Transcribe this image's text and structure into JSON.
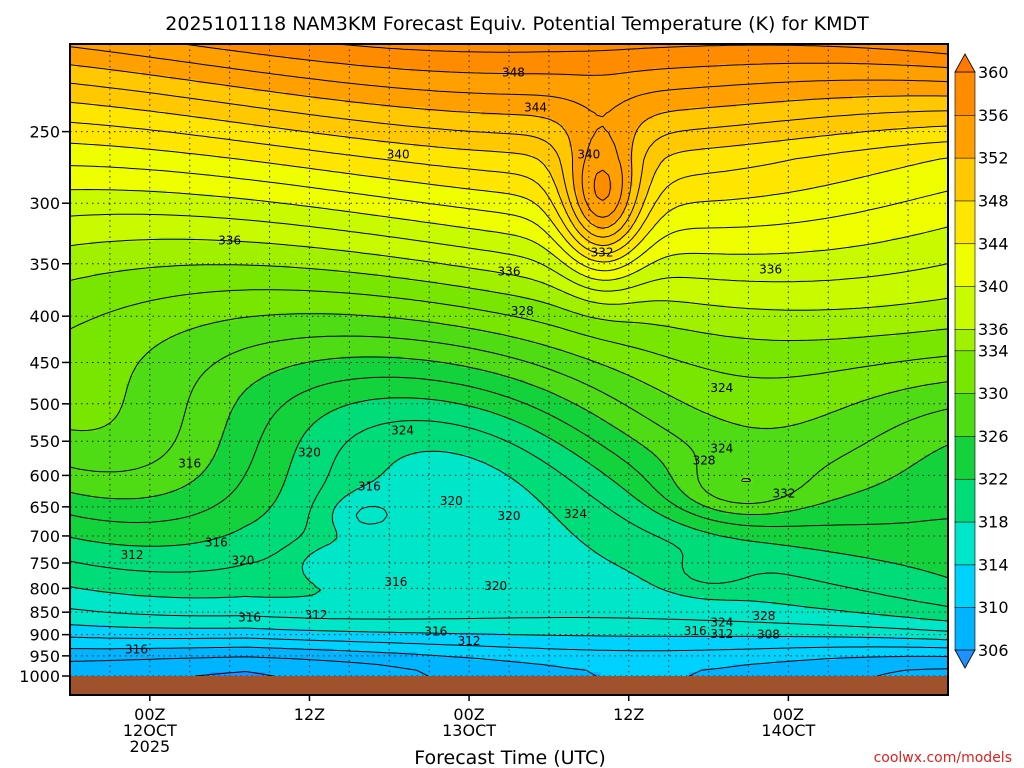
{
  "chart_data": {
    "type": "contour",
    "title": "2025101118 NAM3KM Forecast Equiv. Potential Temperature (K) for KMDT",
    "xlabel": "Forecast Time (UTC)",
    "ylabel": "",
    "credit": "coolwx.com/models",
    "y_axis": {
      "scale": "log",
      "units": "hPa",
      "ylim": [
        1000,
        200
      ],
      "tick_labels": [
        "250",
        "300",
        "350",
        "400",
        "450",
        "500",
        "550",
        "600",
        "650",
        "700",
        "750",
        "800",
        "850",
        "900",
        "950",
        "1000"
      ]
    },
    "x_axis": {
      "xlim": [
        "2025-10-11T18:00Z",
        "2025-10-14T12:00Z"
      ],
      "ticks": [
        {
          "time": "2025-10-12T00:00Z",
          "lines": [
            "00Z",
            "12OCT",
            "2025"
          ]
        },
        {
          "time": "2025-10-12T12:00Z",
          "lines": [
            "12Z"
          ]
        },
        {
          "time": "2025-10-13T00:00Z",
          "lines": [
            "00Z",
            "13OCT"
          ]
        },
        {
          "time": "2025-10-13T12:00Z",
          "lines": [
            "12Z"
          ]
        },
        {
          "time": "2025-10-14T00:00Z",
          "lines": [
            "00Z",
            "14OCT"
          ]
        }
      ],
      "grid": true
    },
    "colorbar": {
      "units": "K",
      "tick_labels": [
        "306",
        "310",
        "314",
        "318",
        "322",
        "326",
        "330",
        "334",
        "336",
        "340",
        "344",
        "348",
        "352",
        "356",
        "360"
      ],
      "bands": [
        {
          "from": 304,
          "to": 306,
          "color": "#1e90ff"
        },
        {
          "from": 306,
          "to": 310,
          "color": "#00b4ff"
        },
        {
          "from": 310,
          "to": 314,
          "color": "#00d2ff"
        },
        {
          "from": 314,
          "to": 318,
          "color": "#00e6c8"
        },
        {
          "from": 318,
          "to": 322,
          "color": "#00dc78"
        },
        {
          "from": 322,
          "to": 326,
          "color": "#14d23c"
        },
        {
          "from": 326,
          "to": 330,
          "color": "#50dc14"
        },
        {
          "from": 330,
          "to": 334,
          "color": "#78e600"
        },
        {
          "from": 334,
          "to": 336,
          "color": "#a0f000"
        },
        {
          "from": 336,
          "to": 340,
          "color": "#c8fa00"
        },
        {
          "from": 340,
          "to": 344,
          "color": "#f0ff00"
        },
        {
          "from": 344,
          "to": 348,
          "color": "#ffe600"
        },
        {
          "from": 348,
          "to": 352,
          "color": "#ffc800"
        },
        {
          "from": 352,
          "to": 356,
          "color": "#ffa000"
        },
        {
          "from": 356,
          "to": 360,
          "color": "#ff8c00"
        },
        {
          "from": 360,
          "to": 362,
          "color": "#ff7800"
        }
      ]
    },
    "contour_labels": [
      {
        "value": "348",
        "time": "2025-10-13T03:20Z",
        "p": 215
      },
      {
        "value": "344",
        "time": "2025-10-13T05:00Z",
        "p": 235
      },
      {
        "value": "340",
        "time": "2025-10-12T18:40Z",
        "p": 265
      },
      {
        "value": "340",
        "time": "2025-10-13T09:00Z",
        "p": 265
      },
      {
        "value": "336",
        "time": "2025-10-12T06:00Z",
        "p": 330
      },
      {
        "value": "336",
        "time": "2025-10-13T03:00Z",
        "p": 357
      },
      {
        "value": "336",
        "time": "2025-10-13T22:40Z",
        "p": 355
      },
      {
        "value": "332",
        "time": "2025-10-13T10:00Z",
        "p": 340
      },
      {
        "value": "328",
        "time": "2025-10-13T04:00Z",
        "p": 395
      },
      {
        "value": "324",
        "time": "2025-10-12T19:00Z",
        "p": 535
      },
      {
        "value": "324",
        "time": "2025-10-13T19:00Z",
        "p": 480
      },
      {
        "value": "324",
        "time": "2025-10-13T19:00Z",
        "p": 560
      },
      {
        "value": "324",
        "time": "2025-10-13T08:00Z",
        "p": 662
      },
      {
        "value": "328",
        "time": "2025-10-13T17:40Z",
        "p": 578
      },
      {
        "value": "332",
        "time": "2025-10-13T23:40Z",
        "p": 628
      },
      {
        "value": "320",
        "time": "2025-10-12T12:00Z",
        "p": 566
      },
      {
        "value": "320",
        "time": "2025-10-12T22:40Z",
        "p": 640
      },
      {
        "value": "320",
        "time": "2025-10-13T03:00Z",
        "p": 665
      },
      {
        "value": "320",
        "time": "2025-10-12T07:00Z",
        "p": 745
      },
      {
        "value": "320",
        "time": "2025-10-13T02:00Z",
        "p": 795
      },
      {
        "value": "316",
        "time": "2025-10-12T03:00Z",
        "p": 582
      },
      {
        "value": "316",
        "time": "2025-10-12T16:30Z",
        "p": 617
      },
      {
        "value": "316",
        "time": "2025-10-12T05:00Z",
        "p": 712
      },
      {
        "value": "316",
        "time": "2025-10-12T18:30Z",
        "p": 787
      },
      {
        "value": "316",
        "time": "2025-10-12T07:30Z",
        "p": 862
      },
      {
        "value": "316",
        "time": "2025-10-12T21:30Z",
        "p": 893
      },
      {
        "value": "316",
        "time": "2025-10-13T17:00Z",
        "p": 892
      },
      {
        "value": "316",
        "time": "2025-10-11T23:00Z",
        "p": 935
      },
      {
        "value": "312",
        "time": "2025-10-11T22:40Z",
        "p": 735
      },
      {
        "value": "312",
        "time": "2025-10-12T12:30Z",
        "p": 856
      },
      {
        "value": "312",
        "time": "2025-10-13T00:00Z",
        "p": 915
      },
      {
        "value": "312",
        "time": "2025-10-13T19:00Z",
        "p": 898
      },
      {
        "value": "308",
        "time": "2025-10-13T22:30Z",
        "p": 900
      },
      {
        "value": "324",
        "time": "2025-10-13T19:00Z",
        "p": 873
      },
      {
        "value": "328",
        "time": "2025-10-13T22:10Z",
        "p": 858
      }
    ]
  }
}
